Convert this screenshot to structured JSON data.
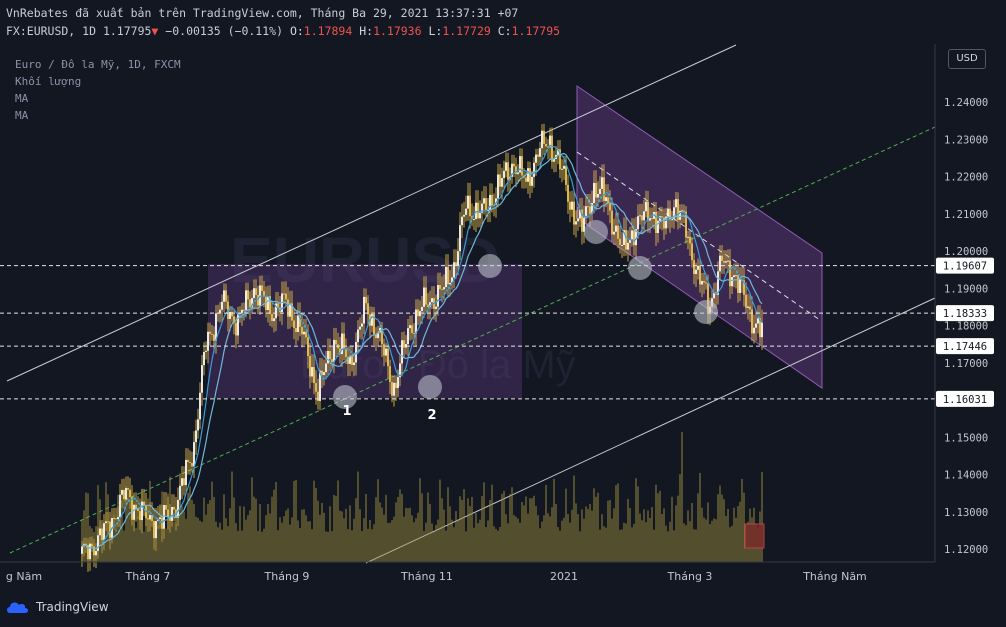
{
  "header": {
    "publisher_line": "VnRebates đã xuất bản trên TradingView.com, Tháng Ba 29, 2021 13:37:31 +07",
    "symbol": "FX:EURUSD, 1D",
    "last": "1.17795",
    "change": "−0.00135 (−0.11%)",
    "o_label": "O:",
    "o_value": "1.17894",
    "h_label": "H:",
    "h_value": "1.17936",
    "l_label": "L:",
    "l_value": "1.17729",
    "c_label": "C:",
    "c_value": "1.17795"
  },
  "legend": {
    "title": "Euro / Đô la Mỹ, 1D, FXCM",
    "volume": "Khối lượng",
    "ma1": "MA",
    "ma2": "MA"
  },
  "watermark": {
    "symbol": "EURUSD",
    "name": "Euro / Đô la Mỹ"
  },
  "currency_button": "USD",
  "footer": {
    "brand": "TradingView"
  },
  "colors": {
    "background": "#131722",
    "candle": "#f2c94c",
    "ma_fast": "#3a9bd5",
    "ma_slow": "#6fb7d8",
    "channel": "#6b3f8c",
    "volume": "#9a8a3c",
    "dashed_green": "#4caf50"
  },
  "chart_data": {
    "type": "candlestick",
    "x_axis_labels": [
      "g Năm",
      "Tháng 7",
      "Tháng 9",
      "Tháng 11",
      "2021",
      "Tháng 3",
      "Tháng Năm"
    ],
    "y_axis_labels": [
      "1.24000",
      "1.23000",
      "1.22000",
      "1.21000",
      "1.20000",
      "1.19000",
      "1.18000",
      "1.17000",
      "1.15000",
      "1.14000",
      "1.13000",
      "1.12000"
    ],
    "ylim": [
      1.116,
      1.25
    ],
    "price_levels": [
      "1.19607",
      "1.18333",
      "1.17446",
      "1.16031"
    ],
    "annotations": [
      "1",
      "2"
    ],
    "series_close_anchors": [
      {
        "t": 0,
        "p": 1.118
      },
      {
        "t": 12,
        "p": 1.125
      },
      {
        "t": 22,
        "p": 1.135
      },
      {
        "t": 30,
        "p": 1.129
      },
      {
        "t": 40,
        "p": 1.127
      },
      {
        "t": 48,
        "p": 1.133
      },
      {
        "t": 56,
        "p": 1.148
      },
      {
        "t": 62,
        "p": 1.175
      },
      {
        "t": 70,
        "p": 1.186
      },
      {
        "t": 78,
        "p": 1.181
      },
      {
        "t": 86,
        "p": 1.19
      },
      {
        "t": 94,
        "p": 1.184
      },
      {
        "t": 102,
        "p": 1.186
      },
      {
        "t": 110,
        "p": 1.178
      },
      {
        "t": 118,
        "p": 1.162
      },
      {
        "t": 126,
        "p": 1.176
      },
      {
        "t": 134,
        "p": 1.17
      },
      {
        "t": 142,
        "p": 1.185
      },
      {
        "t": 148,
        "p": 1.178
      },
      {
        "t": 156,
        "p": 1.163
      },
      {
        "t": 164,
        "p": 1.18
      },
      {
        "t": 172,
        "p": 1.186
      },
      {
        "t": 180,
        "p": 1.189
      },
      {
        "t": 186,
        "p": 1.196
      },
      {
        "t": 192,
        "p": 1.212
      },
      {
        "t": 200,
        "p": 1.21
      },
      {
        "t": 208,
        "p": 1.217
      },
      {
        "t": 216,
        "p": 1.224
      },
      {
        "t": 222,
        "p": 1.218
      },
      {
        "t": 228,
        "p": 1.227
      },
      {
        "t": 234,
        "p": 1.229
      },
      {
        "t": 238,
        "p": 1.225
      },
      {
        "t": 244,
        "p": 1.213
      },
      {
        "t": 250,
        "p": 1.206
      },
      {
        "t": 256,
        "p": 1.217
      },
      {
        "t": 262,
        "p": 1.214
      },
      {
        "t": 270,
        "p": 1.2
      },
      {
        "t": 276,
        "p": 1.206
      },
      {
        "t": 284,
        "p": 1.211
      },
      {
        "t": 290,
        "p": 1.206
      },
      {
        "t": 296,
        "p": 1.213
      },
      {
        "t": 302,
        "p": 1.206
      },
      {
        "t": 308,
        "p": 1.193
      },
      {
        "t": 314,
        "p": 1.186
      },
      {
        "t": 320,
        "p": 1.197
      },
      {
        "t": 326,
        "p": 1.194
      },
      {
        "t": 332,
        "p": 1.186
      },
      {
        "t": 336,
        "p": 1.181
      },
      {
        "t": 340,
        "p": 1.178
      }
    ]
  }
}
